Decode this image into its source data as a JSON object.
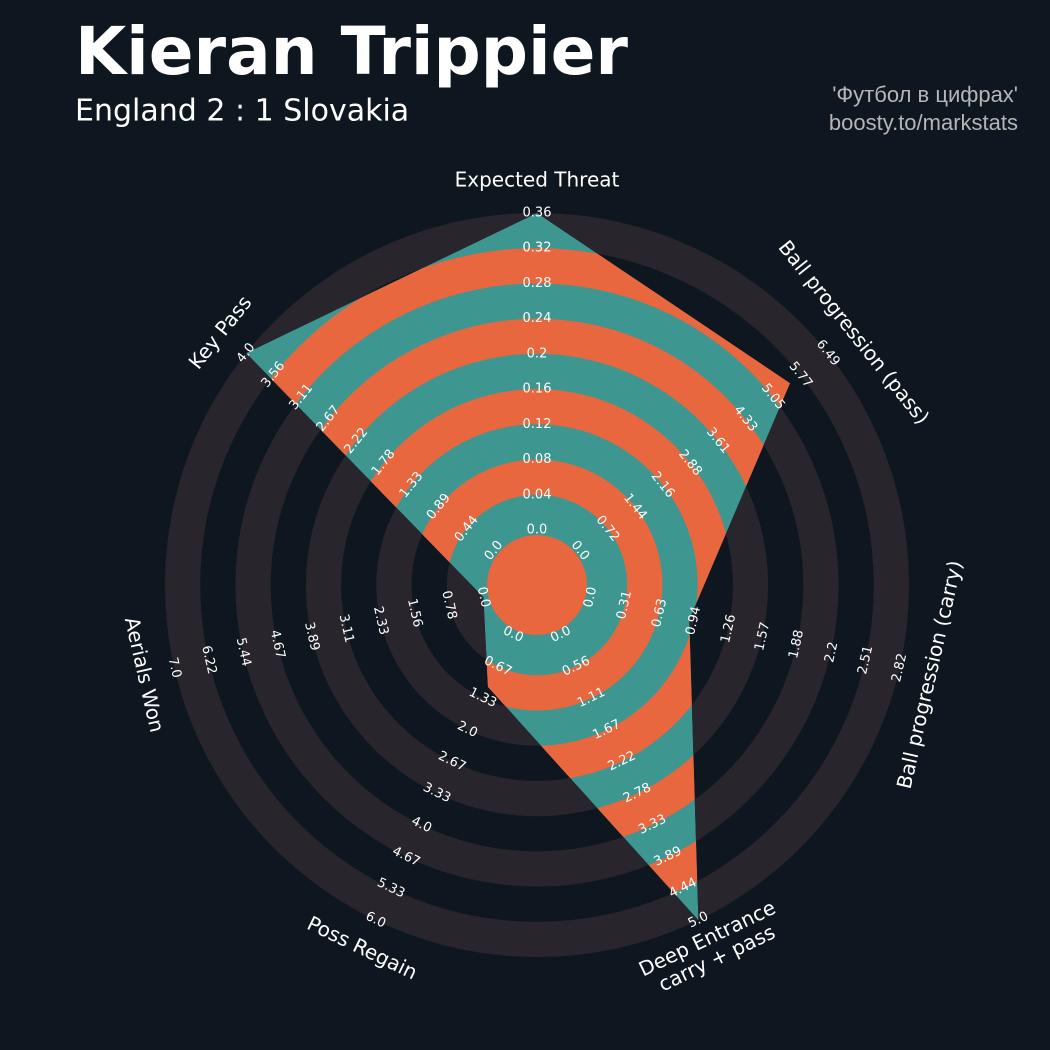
{
  "chart_data": {
    "type": "radar",
    "title": "Kieran Trippier",
    "subtitle": "England 2 : 1 Slovakia",
    "annotations": [
      "'Футбол в цифрах'",
      "boosty.to/markstats"
    ],
    "categories": [
      "Expected Threat",
      "Ball progression (pass)",
      "Ball progression (carry)",
      "Deep Entrance\ncarry + pass",
      "Poss Regain",
      "Aerials Won",
      "Key Pass"
    ],
    "axes": [
      {
        "lim": [
          0,
          0.36
        ],
        "ticks": [
          {
            "value": 0,
            "label": "0.0"
          },
          0.04,
          0.08,
          0.12,
          0.16,
          0.2,
          0.24,
          0.28,
          0.32,
          0.36
        ]
      },
      {
        "lim": [
          0,
          6.49
        ],
        "ticks": [
          {
            "value": 0,
            "label": "0.0"
          },
          0.72,
          1.44,
          2.16,
          2.88,
          3.61,
          4.33,
          5.05,
          5.77,
          6.49
        ]
      },
      {
        "lim": [
          0,
          2.82
        ],
        "ticks": [
          {
            "value": 0,
            "label": "0.0"
          },
          0.31,
          0.63,
          0.94,
          1.26,
          1.57,
          1.88,
          2.2,
          2.51,
          2.82
        ]
      },
      {
        "lim": [
          0,
          5.0
        ],
        "ticks": [
          {
            "value": 0,
            "label": "0.0"
          },
          0.56,
          1.11,
          1.67,
          2.22,
          2.78,
          3.33,
          3.89,
          4.44,
          {
            "value": 5,
            "label": "5.0"
          }
        ]
      },
      {
        "lim": [
          0,
          6.0
        ],
        "ticks": [
          {
            "value": 0,
            "label": "0.0"
          },
          0.67,
          1.33,
          {
            "value": 2,
            "label": "2.0"
          },
          2.67,
          3.33,
          {
            "value": 4,
            "label": "4.0"
          },
          4.67,
          5.33,
          {
            "value": 6,
            "label": "6.0"
          }
        ]
      },
      {
        "lim": [
          0,
          7.0
        ],
        "ticks": [
          {
            "value": 0,
            "label": "0.0"
          },
          0.78,
          1.56,
          2.33,
          3.11,
          3.89,
          4.67,
          5.44,
          6.22,
          {
            "value": 7,
            "label": "7.0"
          }
        ]
      },
      {
        "lim": [
          0,
          4.0
        ],
        "ticks": [
          {
            "value": 0,
            "label": "0.0"
          },
          0.44,
          0.89,
          1.33,
          1.78,
          2.22,
          2.67,
          3.11,
          3.56,
          {
            "value": 4,
            "label": "4.0"
          }
        ]
      }
    ],
    "values": [
      0.36,
      5.5,
      0.9,
      5.0,
      1.1,
      0,
      4.0
    ],
    "color": "#3d9690",
    "alt_color": "#e8673f",
    "ring_color": "#28252c"
  }
}
